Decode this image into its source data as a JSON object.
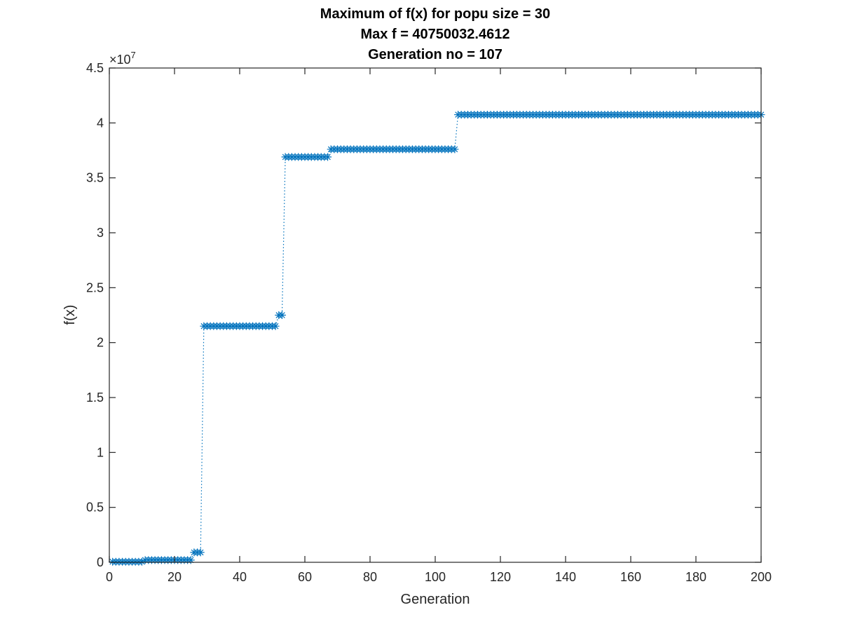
{
  "chart_data": {
    "type": "line",
    "title_lines": [
      "Maximum of f(x) for popu size = 30",
      "Max f = 40750032.4612",
      "Generation no = 107"
    ],
    "xlabel": "Generation",
    "ylabel": "f(x)",
    "xlim": [
      0,
      200
    ],
    "ylim": [
      0,
      45000000
    ],
    "x_ticks": [
      0,
      20,
      40,
      60,
      80,
      100,
      120,
      140,
      160,
      180,
      200
    ],
    "y_ticks": [
      0,
      5000000,
      10000000,
      15000000,
      20000000,
      25000000,
      30000000,
      35000000,
      40000000,
      45000000
    ],
    "y_tick_labels": [
      "0",
      "0.5",
      "1",
      "1.5",
      "2",
      "2.5",
      "3",
      "3.5",
      "4",
      "4.5"
    ],
    "y_exponent_base": "×10",
    "y_exponent_power": "7",
    "marker": "asterisk",
    "line_style": "dotted",
    "grid": false,
    "color": "#0072BD",
    "segments": [
      {
        "from": 1,
        "to": 10,
        "value": 50000
      },
      {
        "from": 11,
        "to": 25,
        "value": 200000
      },
      {
        "from": 26,
        "to": 28,
        "value": 900000
      },
      {
        "from": 29,
        "to": 51,
        "value": 21500000
      },
      {
        "from": 52,
        "to": 53,
        "value": 22500000
      },
      {
        "from": 54,
        "to": 67,
        "value": 36900000
      },
      {
        "from": 68,
        "to": 106,
        "value": 37600000
      },
      {
        "from": 107,
        "to": 200,
        "value": 40750032.4612
      }
    ]
  }
}
